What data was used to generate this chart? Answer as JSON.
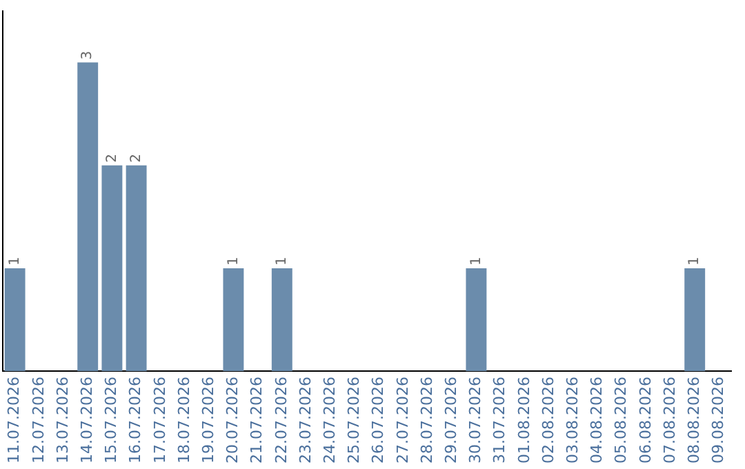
{
  "chart_data": {
    "type": "bar",
    "categories": [
      "11.07.2026",
      "12.07.2026",
      "13.07.2026",
      "14.07.2026",
      "15.07.2026",
      "16.07.2026",
      "17.07.2026",
      "18.07.2026",
      "19.07.2026",
      "20.07.2026",
      "21.07.2026",
      "22.07.2026",
      "23.07.2026",
      "24.07.2026",
      "25.07.2026",
      "26.07.2026",
      "27.07.2026",
      "28.07.2026",
      "29.07.2026",
      "30.07.2026",
      "31.07.2026",
      "01.08.2026",
      "02.08.2026",
      "03.08.2026",
      "04.08.2026",
      "05.08.2026",
      "06.08.2026",
      "07.08.2026",
      "08.08.2026",
      "09.08.2026"
    ],
    "values": [
      1,
      0,
      0,
      3,
      2,
      2,
      0,
      0,
      0,
      1,
      0,
      1,
      0,
      0,
      0,
      0,
      0,
      0,
      0,
      1,
      0,
      0,
      0,
      0,
      0,
      0,
      0,
      0,
      1,
      0
    ],
    "value_labels": [
      "1",
      null,
      null,
      "3",
      "2",
      "2",
      null,
      null,
      null,
      "1",
      null,
      "1",
      null,
      null,
      null,
      null,
      null,
      null,
      null,
      "1",
      null,
      null,
      null,
      null,
      null,
      null,
      null,
      null,
      "1",
      null
    ],
    "color": "#6b8cac",
    "grid": false,
    "legend": false,
    "tick_labels": "x"
  }
}
